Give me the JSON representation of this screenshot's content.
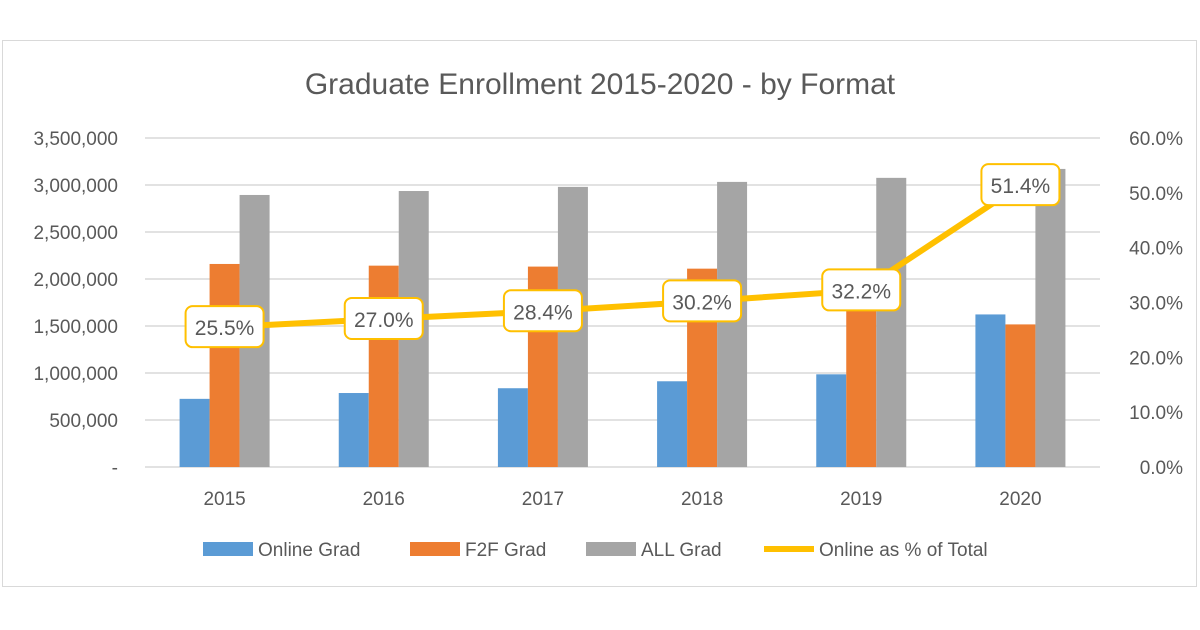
{
  "chart_data": {
    "type": "bar",
    "title": "Graduate Enrollment 2015-2020 - by Format",
    "categories": [
      "2015",
      "2016",
      "2017",
      "2018",
      "2019",
      "2020"
    ],
    "series": [
      {
        "name": "Online Grad",
        "type": "bar",
        "axis": "left",
        "color": "#5b9bd5",
        "values": [
          725000,
          787000,
          838000,
          912000,
          986000,
          1623000
        ]
      },
      {
        "name": "F2F Grad",
        "type": "bar",
        "axis": "left",
        "color": "#ed7d31",
        "values": [
          2160000,
          2142000,
          2132000,
          2110000,
          2090000,
          1517000
        ]
      },
      {
        "name": "ALL Grad",
        "type": "bar",
        "axis": "left",
        "color": "#a5a5a5",
        "values": [
          2894000,
          2936000,
          2980000,
          3033000,
          3076000,
          3171000
        ]
      },
      {
        "name": "Online as % of Total",
        "type": "line",
        "axis": "right",
        "color": "#ffc000",
        "values": [
          25.5,
          27.0,
          28.4,
          30.2,
          32.2,
          51.4
        ],
        "labels": [
          "25.5%",
          "27.0%",
          "28.4%",
          "30.2%",
          "32.2%",
          "51.4%"
        ]
      }
    ],
    "y_left": {
      "ylim": [
        0,
        3500000
      ],
      "ticks": [
        "-",
        "500,000",
        "1,000,000",
        "1,500,000",
        "2,000,000",
        "2,500,000",
        "3,000,000",
        "3,500,000"
      ]
    },
    "y_right": {
      "ylim": [
        0,
        60
      ],
      "ticks": [
        "0.0%",
        "10.0%",
        "20.0%",
        "30.0%",
        "40.0%",
        "50.0%",
        "60.0%"
      ]
    },
    "grid": true,
    "legend": "bottom"
  }
}
